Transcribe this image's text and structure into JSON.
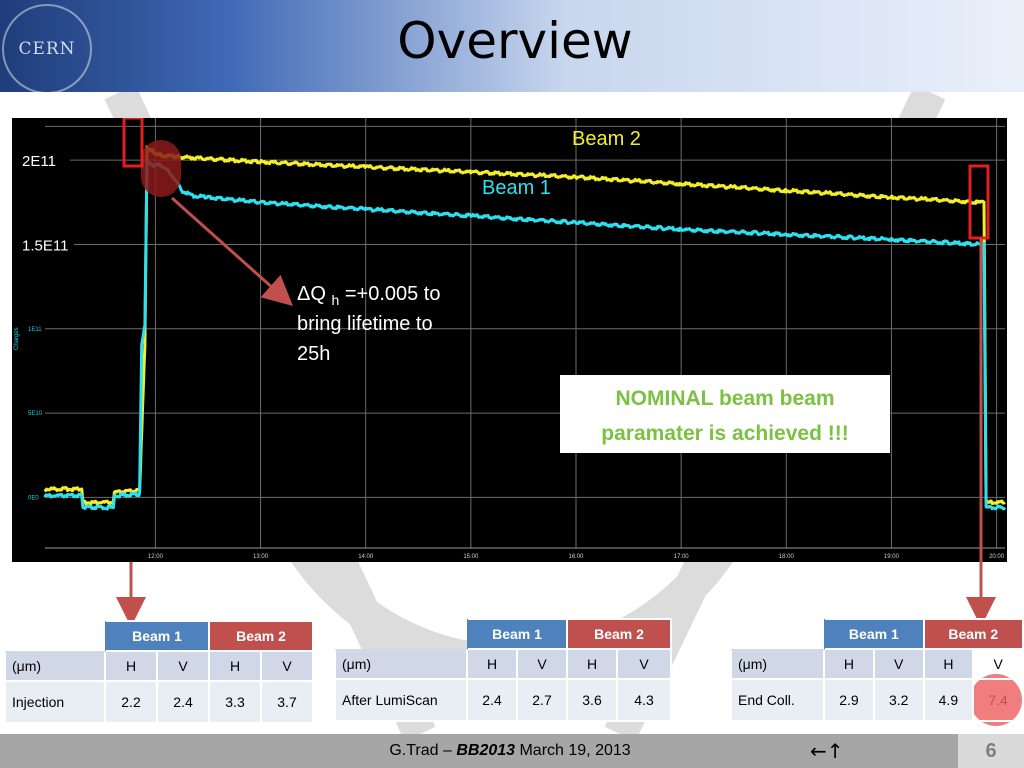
{
  "slide": {
    "title": "Overview",
    "logo_text": "CERN",
    "footer": {
      "author": "G.Trad",
      "separator": " – ",
      "event": "BB2013",
      "date": " March 19, 2013",
      "nav": "←↑",
      "page": "6"
    }
  },
  "annotations": {
    "tune_prefix": "ΔQ",
    "tune_sub": "h",
    "tune_line1": " =+0.005 to",
    "tune_line2": "bring lifetime to",
    "tune_line3": "25h",
    "nominal_line1": "NOMINAL beam beam",
    "nominal_line2": "paramater is achieved !!!"
  },
  "colors": {
    "beam1": "#2de0f0",
    "beam2": "#f2ee2a",
    "table_beam1": "#4f81bd",
    "table_beam2": "#c0504d",
    "callout": "#c0504d",
    "nominal_text": "#7bc142"
  },
  "tables": [
    {
      "beam1": "Beam 1",
      "beam2": "Beam 2",
      "unit": "(μm)",
      "cols": [
        "H",
        "V",
        "H",
        "V"
      ],
      "row_label": "Injection",
      "values": [
        "2.2",
        "2.4",
        "3.3",
        "3.7"
      ]
    },
    {
      "beam1": "Beam 1",
      "beam2": "Beam 2",
      "unit": "(μm)",
      "cols": [
        "H",
        "V",
        "H",
        "V"
      ],
      "row_label": "After LumiScan",
      "values": [
        "2.4",
        "2.7",
        "3.6",
        "4.3"
      ]
    },
    {
      "beam1": "Beam 1",
      "beam2": "Beam 2",
      "unit": "(μm)",
      "cols": [
        "H",
        "V",
        "H",
        "V"
      ],
      "row_label": "End Coll.",
      "values": [
        "2.9",
        "3.2",
        "4.9",
        "7.4"
      ]
    }
  ],
  "chart_data": {
    "type": "line",
    "title": "",
    "xlabel": "",
    "ylabel": "Charges",
    "x_unit": "hours",
    "xlim": [
      10.95,
      20.08
    ],
    "ylim": [
      -30000000000.0,
      225000000000.0
    ],
    "x_ticks": [
      12.0,
      13.0,
      14.0,
      15.0,
      16.0,
      17.0,
      18.0,
      19.0,
      20.0
    ],
    "x_tick_labels": [
      "12:00",
      "13:00",
      "14:00",
      "15:00",
      "16:00",
      "17:00",
      "18:00",
      "19:00",
      "20:00"
    ],
    "y_ticks": [
      0,
      50000000000.0,
      100000000000.0
    ],
    "y_tick_labels": [
      "0E0",
      "5E10",
      "1E11"
    ],
    "y_callouts": [
      {
        "value": 200000000000.0,
        "label": "2E11"
      },
      {
        "value": 150000000000.0,
        "label": "1.5E11"
      }
    ],
    "grid": true,
    "series": [
      {
        "name": "Beam 2",
        "color": "#f2ee2a",
        "x": [
          10.95,
          11.3,
          11.31,
          11.6,
          11.61,
          11.85,
          11.9,
          11.92,
          11.98,
          12.05,
          12.2,
          13.0,
          14.0,
          15.0,
          16.0,
          17.0,
          18.0,
          19.0,
          19.85,
          19.88,
          19.9,
          20.08
        ],
        "y": [
          5000000000.0,
          5000000000.0,
          -3000000000.0,
          -3000000000.0,
          3000000000.0,
          4000000000.0,
          90000000000.0,
          208000000000.0,
          205000000000.0,
          203000000000.0,
          202000000000.0,
          199000000000.0,
          196000000000.0,
          193000000000.0,
          190000000000.0,
          186000000000.0,
          182000000000.0,
          178000000000.0,
          175000000000.0,
          175000000000.0,
          -3000000000.0,
          -3000000000.0
        ]
      },
      {
        "name": "Beam 1",
        "color": "#2de0f0",
        "x": [
          10.95,
          11.3,
          11.31,
          11.6,
          11.61,
          11.85,
          11.87,
          11.9,
          11.92,
          11.98,
          12.05,
          12.15,
          12.25,
          12.35,
          12.5,
          13.0,
          14.0,
          15.0,
          16.0,
          17.0,
          18.0,
          19.0,
          19.85,
          19.88,
          19.9,
          20.08
        ],
        "y": [
          1000000000.0,
          1000000000.0,
          -6000000000.0,
          -6000000000.0,
          1000000000.0,
          2000000000.0,
          90000000000.0,
          102000000000.0,
          198000000000.0,
          197000000000.0,
          197000000000.0,
          192000000000.0,
          182000000000.0,
          179000000000.0,
          178000000000.0,
          175000000000.0,
          171000000000.0,
          167000000000.0,
          163000000000.0,
          159000000000.0,
          156000000000.0,
          153000000000.0,
          150000000000.0,
          150000000000.0,
          -6000000000.0,
          -6000000000.0
        ]
      }
    ],
    "annotations": [
      "Beam 2",
      "Beam 1"
    ]
  }
}
